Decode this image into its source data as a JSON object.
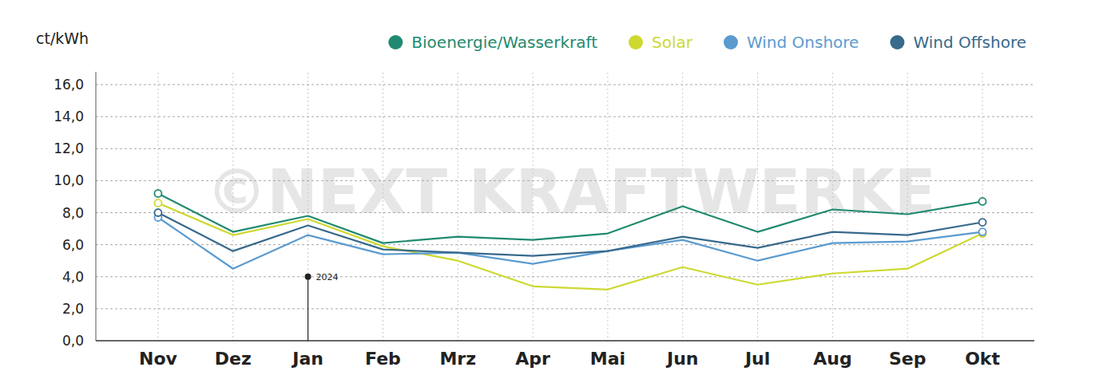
{
  "chart_data": {
    "type": "line",
    "y_label": "ct/kWh",
    "watermark": "©NEXT KRAFTWERKE",
    "categories": [
      "Nov",
      "Dez",
      "Jan",
      "Feb",
      "Mrz",
      "Apr",
      "Mai",
      "Jun",
      "Jul",
      "Aug",
      "Sep",
      "Okt"
    ],
    "series": [
      {
        "name": "Bioenergie/Wasserkraft",
        "color": "#1f8a6f",
        "marker": "endpoints",
        "values": [
          9.2,
          6.8,
          7.8,
          6.1,
          6.5,
          6.3,
          6.7,
          8.4,
          6.8,
          8.2,
          7.9,
          8.7
        ]
      },
      {
        "name": "Solar",
        "color": "#cdd930",
        "marker": "endpoints",
        "values": [
          8.6,
          6.6,
          7.6,
          5.9,
          5.0,
          3.4,
          3.2,
          4.6,
          3.5,
          4.2,
          4.5,
          6.7
        ]
      },
      {
        "name": "Wind Onshore",
        "color": "#5b9bd0",
        "marker": "endpoints",
        "values": [
          7.7,
          4.5,
          6.6,
          5.4,
          5.5,
          4.8,
          5.6,
          6.3,
          5.0,
          6.1,
          6.2,
          6.8
        ]
      },
      {
        "name": "Wind Offshore",
        "color": "#386a8c",
        "marker": "endpoints",
        "values": [
          8.0,
          5.6,
          7.2,
          5.7,
          5.5,
          5.3,
          5.6,
          6.5,
          5.8,
          6.8,
          6.6,
          7.4
        ]
      }
    ],
    "annotations": [
      {
        "text": "2024",
        "x": "Jan",
        "y": 4.0
      }
    ],
    "ylim": [
      0,
      16
    ],
    "yticks": [
      {
        "value": 0,
        "label": "0,0"
      },
      {
        "value": 2,
        "label": "2,0"
      },
      {
        "value": 4,
        "label": "4,0"
      },
      {
        "value": 6,
        "label": "6,0"
      },
      {
        "value": 8,
        "label": "8,0"
      },
      {
        "value": 10,
        "label": "10,0"
      },
      {
        "value": 12,
        "label": "12,0"
      },
      {
        "value": 14,
        "label": "14,0"
      },
      {
        "value": 16,
        "label": "16,0"
      }
    ],
    "grid": true,
    "legend": "top-right"
  }
}
